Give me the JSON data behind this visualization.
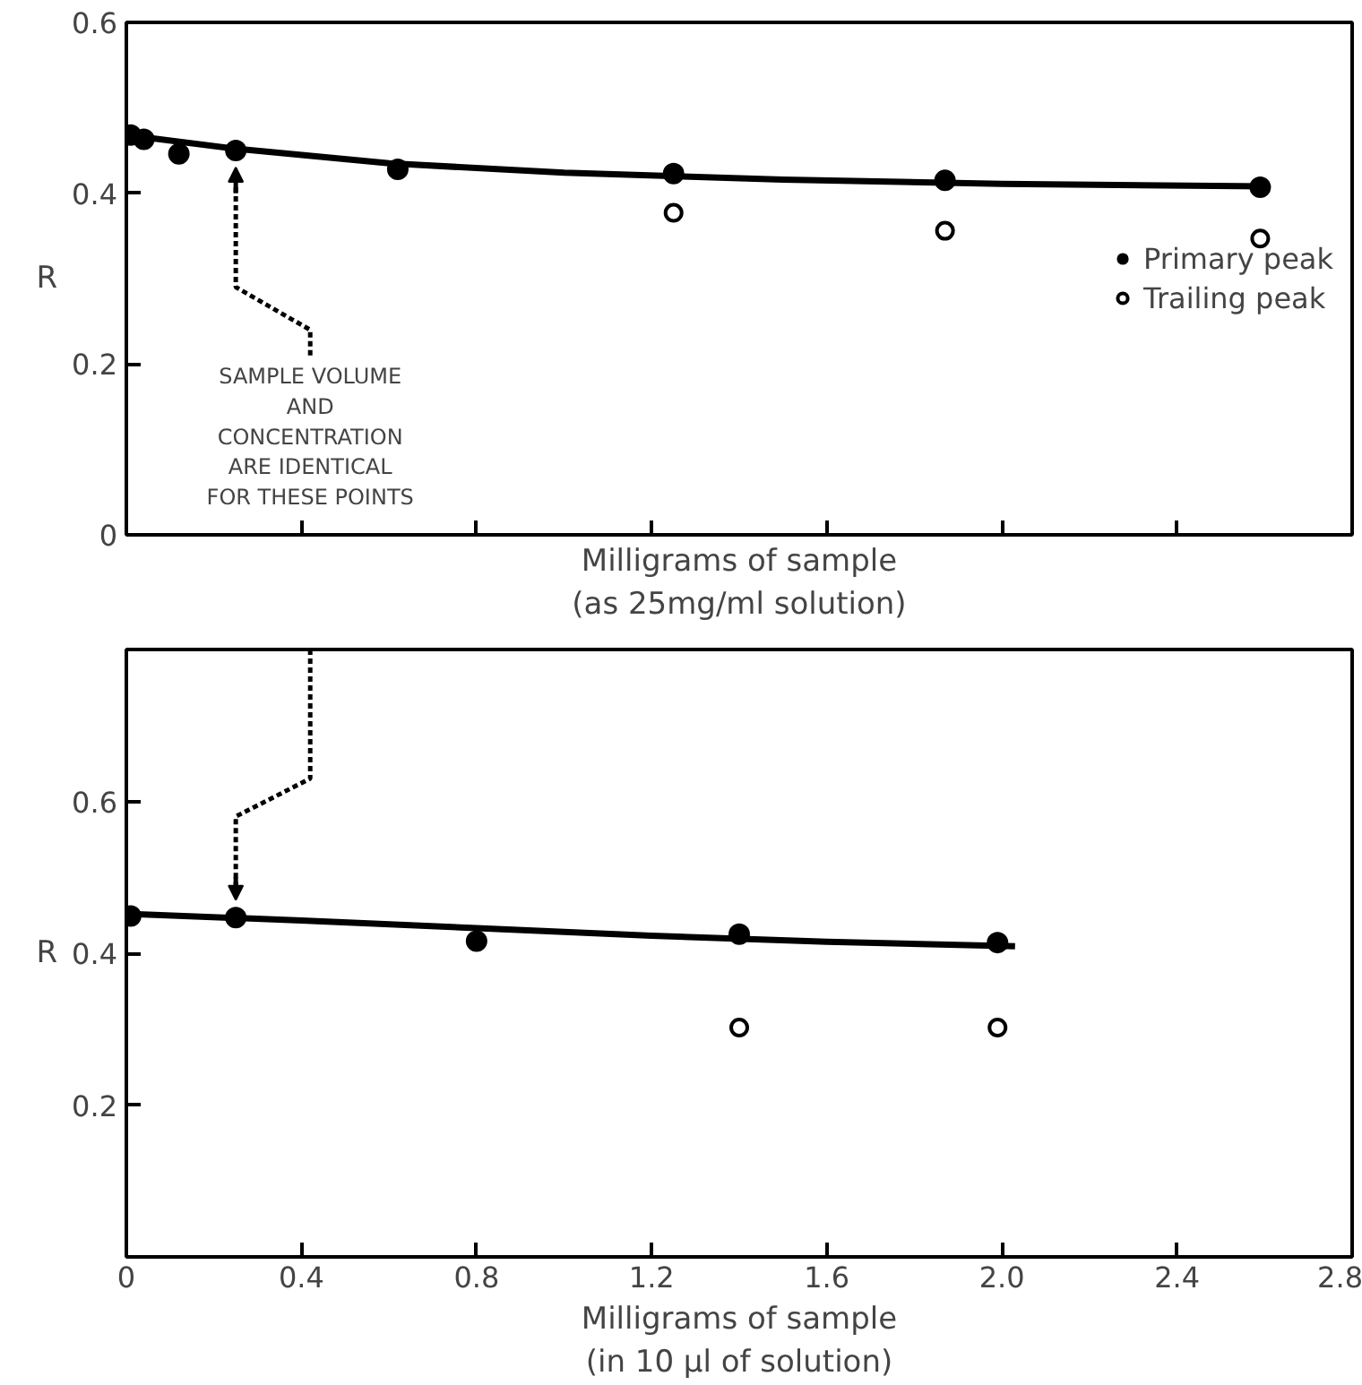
{
  "chart_data": [
    {
      "type": "scatter",
      "xlabel": "Milligrams of sample\n(as 25mg/ml solution)",
      "ylabel": "R",
      "xlim": [
        0,
        2.8
      ],
      "xticks": [
        0,
        0.4,
        0.8,
        1.2,
        1.6,
        2.0,
        2.4,
        2.8
      ],
      "ylim": [
        0,
        0.6
      ],
      "yticks": [
        0,
        0.2,
        0.4,
        0.6
      ],
      "tick_labels": "y",
      "legend": "right",
      "grid": false,
      "annotations": [
        "SAMPLE VOLUME\nAND\nCONCENTRATION\nARE IDENTICAL\nFOR THESE POINTS"
      ],
      "series": [
        {
          "type": "line",
          "color": "#000000",
          "x": [
            0,
            0.25,
            0.6,
            1.0,
            1.5,
            2.0,
            2.6
          ],
          "values": [
            0.468,
            0.452,
            0.435,
            0.424,
            0.416,
            0.411,
            0.408
          ]
        },
        {
          "name": "Primary peak",
          "marker": "circle",
          "color": "#000000",
          "x": [
            0.01,
            0.04,
            0.12,
            0.25,
            0.62,
            1.25,
            1.87,
            2.59
          ],
          "values": [
            0.468,
            0.463,
            0.446,
            0.45,
            0.428,
            0.423,
            0.415,
            0.407
          ]
        },
        {
          "name": "Trailing peak",
          "marker": "circle_open",
          "color": "#000000",
          "x": [
            1.25,
            1.87,
            2.59
          ],
          "values": [
            0.377,
            0.356,
            0.347
          ]
        }
      ]
    },
    {
      "type": "scatter",
      "xlabel": "Milligrams of sample\n(in 10 µl of solution)",
      "ylabel": "R",
      "xlim": [
        0,
        2.8
      ],
      "xticks": [
        0,
        0.4,
        0.8,
        1.2,
        1.6,
        {
          "value": 2.0,
          "label": "2.0"
        },
        2.4,
        2.8
      ],
      "ylim": [
        0,
        0.8
      ],
      "yticks": [
        {
          "value": 0,
          "label": null
        },
        0.2,
        0.4,
        0.6
      ],
      "legend": false,
      "grid": false,
      "series": [
        {
          "type": "line",
          "color": "#000000",
          "x": [
            0,
            0.4,
            0.8,
            1.2,
            1.6,
            2.03
          ],
          "values": [
            0.452,
            0.443,
            0.433,
            0.423,
            0.415,
            0.409
          ]
        },
        {
          "marker": "circle",
          "color": "#000000",
          "x": [
            0.01,
            0.25,
            0.8,
            1.4,
            1.99
          ],
          "values": [
            0.449,
            0.447,
            0.416,
            0.425,
            0.414
          ]
        },
        {
          "marker": "circle_open",
          "color": "#000000",
          "x": [
            1.4,
            1.99
          ],
          "values": [
            0.302,
            0.302
          ]
        }
      ]
    }
  ]
}
